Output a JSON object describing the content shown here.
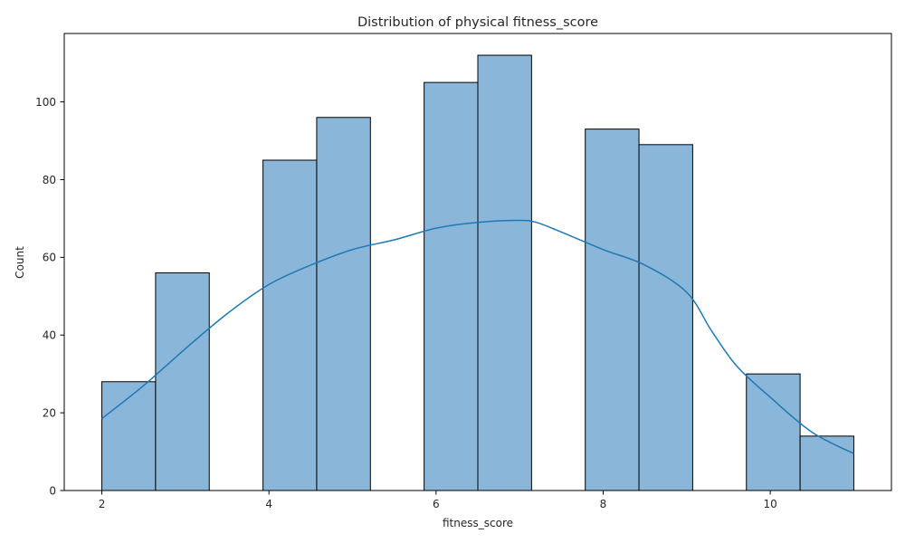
{
  "chart_data": {
    "type": "bar",
    "title": "Distribution of physical fitness_score",
    "xlabel": "fitness_score",
    "ylabel": "Count",
    "xlim": [
      1.55,
      11.45
    ],
    "ylim": [
      0,
      117.6
    ],
    "xticks": [
      2,
      4,
      6,
      8,
      10
    ],
    "yticks": [
      0,
      20,
      40,
      60,
      80,
      100
    ],
    "bin_edges": [
      2,
      2.6429,
      3.2857,
      3.9286,
      4.5714,
      5.2143,
      5.8571,
      6.5,
      7.1429,
      7.7857,
      8.4286,
      9.0714,
      9.7143,
      10.3571,
      11
    ],
    "counts": [
      28,
      56,
      0,
      85,
      96,
      0,
      105,
      112,
      0,
      93,
      89,
      0,
      30,
      14
    ],
    "kde": {
      "x": [
        2,
        2.5,
        3,
        3.5,
        4,
        4.5,
        5,
        5.5,
        6,
        6.5,
        7,
        7.2,
        7.5,
        8,
        8.5,
        9,
        9.3,
        9.6,
        10,
        10.5,
        11
      ],
      "y": [
        18.5,
        27,
        36.5,
        45.5,
        53,
        58,
        62,
        64.5,
        67.5,
        69,
        69.5,
        69,
        66.5,
        62,
        58,
        51,
        41,
        32,
        24,
        15,
        9.5
      ]
    },
    "colors": {
      "bar_fill": "#8ab7d9",
      "bar_edge": "#000000",
      "kde_line": "#1f77b4"
    },
    "grid": false,
    "legend": "none"
  }
}
